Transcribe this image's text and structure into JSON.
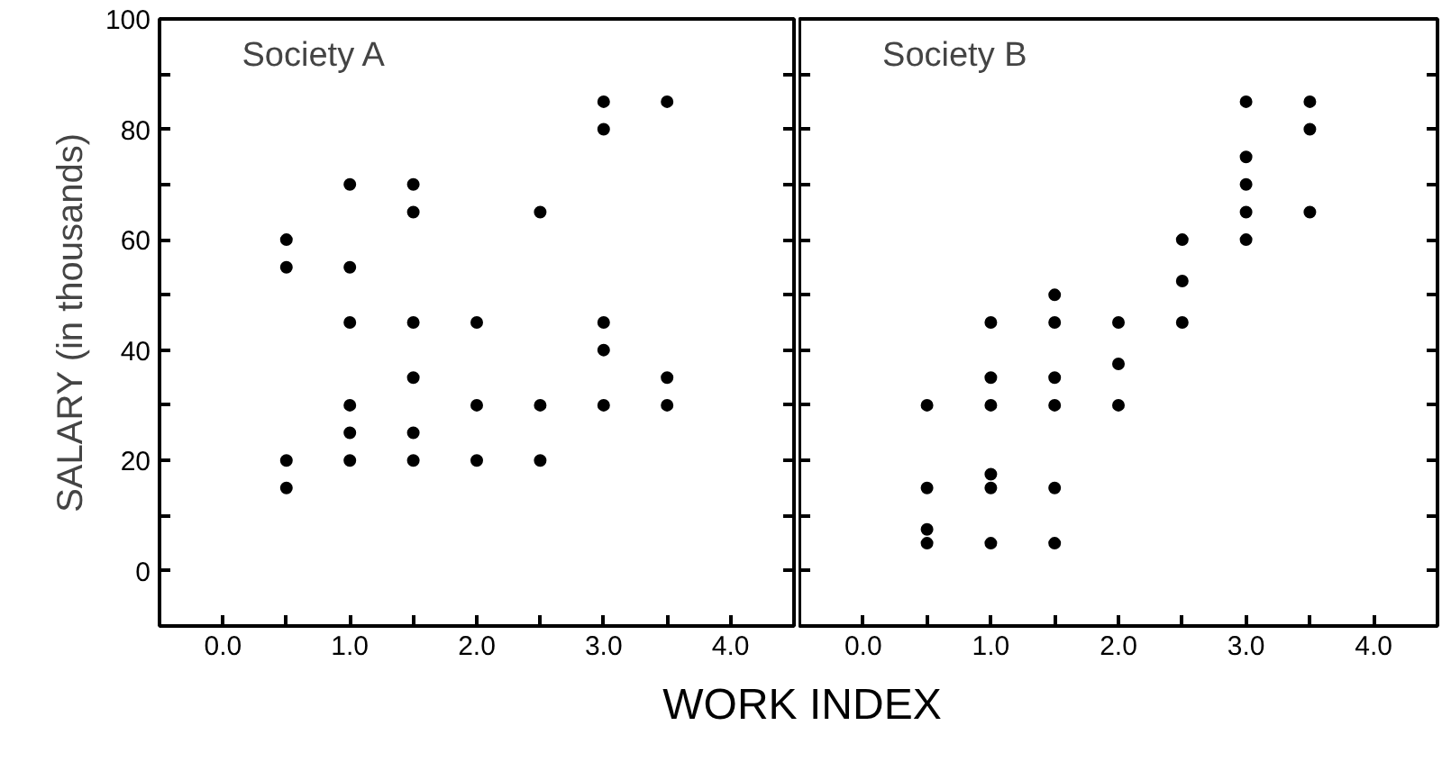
{
  "chart_data": [
    {
      "type": "scatter",
      "title": "Society A",
      "xlabel": "WORK INDEX",
      "ylabel": "SALARY (in thousands)",
      "marker": "circle",
      "grid": false,
      "xlim": [
        -0.5,
        4.5
      ],
      "ylim": [
        -10,
        100
      ],
      "xticks": [
        {
          "value": -0.5,
          "label": null
        },
        {
          "value": 0,
          "label": "0.0"
        },
        {
          "value": 0.5,
          "label": null
        },
        {
          "value": 1,
          "label": "1.0"
        },
        {
          "value": 1.5,
          "label": null
        },
        {
          "value": 2,
          "label": "2.0"
        },
        {
          "value": 2.5,
          "label": null
        },
        {
          "value": 3,
          "label": "3.0"
        },
        {
          "value": 3.5,
          "label": null
        },
        {
          "value": 4,
          "label": "4.0"
        }
      ],
      "yticks": [
        0,
        {
          "value": 10,
          "label": null
        },
        20,
        {
          "value": 30,
          "label": null
        },
        40,
        {
          "value": 50,
          "label": null
        },
        60,
        {
          "value": 70,
          "label": null
        },
        80,
        {
          "value": 90,
          "label": null
        },
        100
      ],
      "series": [
        {
          "color": "#000000",
          "x": [
            0.5,
            0.5,
            0.5,
            0.5,
            1,
            1,
            1,
            1,
            1,
            1,
            1.5,
            1.5,
            1.5,
            1.5,
            1.5,
            1.5,
            2,
            2,
            2,
            2.5,
            2.5,
            2.5,
            3,
            3,
            3,
            3,
            3,
            3.5,
            3.5,
            3.5
          ],
          "values": [
            60,
            55,
            20,
            15,
            70,
            55,
            45,
            30,
            25,
            20,
            70,
            65,
            45,
            35,
            25,
            20,
            45,
            30,
            20,
            65,
            30,
            20,
            85,
            80,
            45,
            40,
            30,
            85,
            35,
            30
          ]
        }
      ]
    },
    {
      "type": "scatter",
      "title": "Society B",
      "marker": "circle",
      "grid": false,
      "tick_labels": "x",
      "xlim": [
        -0.5,
        4.5
      ],
      "ylim": [
        -10,
        100
      ],
      "xticks": [
        {
          "value": -0.5,
          "label": null
        },
        {
          "value": 0,
          "label": "0.0"
        },
        {
          "value": 0.5,
          "label": null
        },
        {
          "value": 1,
          "label": "1.0"
        },
        {
          "value": 1.5,
          "label": null
        },
        {
          "value": 2,
          "label": "2.0"
        },
        {
          "value": 2.5,
          "label": null
        },
        {
          "value": 3,
          "label": "3.0"
        },
        {
          "value": 3.5,
          "label": null
        },
        {
          "value": 4,
          "label": "4.0"
        }
      ],
      "yticks": [
        0,
        {
          "value": 10,
          "label": null
        },
        20,
        {
          "value": 30,
          "label": null
        },
        40,
        {
          "value": 50,
          "label": null
        },
        60,
        {
          "value": 70,
          "label": null
        },
        80,
        {
          "value": 90,
          "label": null
        },
        100
      ],
      "series": [
        {
          "color": "#000000",
          "x": [
            0.5,
            0.5,
            0.5,
            0.5,
            1,
            1,
            1,
            1,
            1,
            1,
            1.5,
            1.5,
            1.5,
            1.5,
            1.5,
            1.5,
            2,
            2,
            2,
            2.5,
            2.5,
            2.5,
            3,
            3,
            3,
            3,
            3,
            3.5,
            3.5,
            3.5
          ],
          "values": [
            30,
            15,
            7.5,
            5,
            45,
            35,
            30,
            17.5,
            15,
            5,
            50,
            45,
            35,
            30,
            15,
            5,
            45,
            37.5,
            30,
            60,
            52.5,
            45,
            85,
            75,
            70,
            65,
            60,
            85,
            80,
            65
          ]
        }
      ]
    }
  ]
}
